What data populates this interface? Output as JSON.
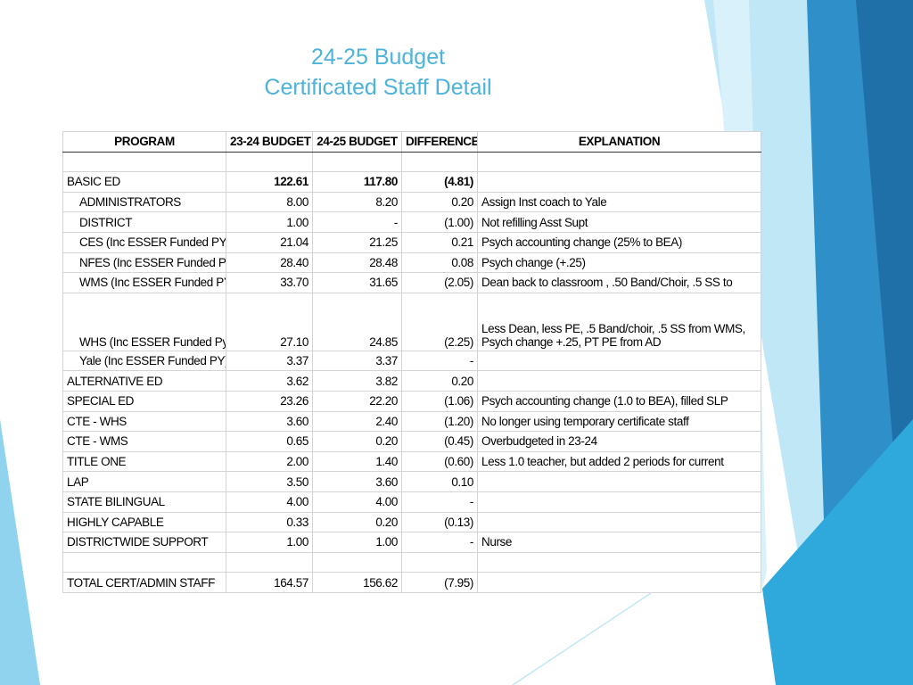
{
  "title": {
    "line1": "24-25 Budget",
    "line2": "Certificated Staff Detail"
  },
  "table": {
    "header": [
      "PROGRAM",
      "23-24 BUDGET",
      "24-25 BUDGET",
      "DIFFERENCE",
      "EXPLANATION"
    ],
    "rows": [
      {
        "program": "BASIC ED",
        "budget_2324": "122.61",
        "budget_2425": "117.80",
        "difference": "(4.81)"
      },
      {
        "program": "ADMINISTRATORS",
        "budget_2324": "8.00",
        "budget_2425": "8.20",
        "difference": "0.20",
        "explanation": "Assign Inst coach to Yale"
      },
      {
        "program": "DISTRICT",
        "budget_2324": "1.00",
        "budget_2425": "-",
        "difference": "(1.00)",
        "explanation": "Not refilling Asst Supt"
      },
      {
        "program": "CES (Inc ESSER Funded PY)",
        "budget_2324": "21.04",
        "budget_2425": "21.25",
        "difference": "0.21",
        "explanation": "Psych accounting change (25% to BEA)"
      },
      {
        "program": "NFES (Inc ESSER Funded PY)",
        "budget_2324": "28.40",
        "budget_2425": "28.48",
        "difference": "0.08",
        "explanation": "Psych change (+.25)"
      },
      {
        "program": "WMS (Inc ESSER Funded PY)",
        "budget_2324": "33.70",
        "budget_2425": "31.65",
        "difference": "(2.05)",
        "explanation": "Dean back to classroom , .50 Band/Choir, .5 SS to"
      },
      {
        "program": "WHS (Inc ESSER Funded Py)",
        "budget_2324": "27.10",
        "budget_2425": "24.85",
        "difference": "(2.25)",
        "explanation": [
          "Less Dean, less PE, .5 Band/choir, .5 SS from WMS,",
          "Psych change +.25, PT PE from AD"
        ]
      },
      {
        "program": "Yale (Inc ESSER Funded PY)",
        "budget_2324": "3.37",
        "budget_2425": "3.37",
        "difference": "-"
      },
      {
        "program": "ALTERNATIVE ED",
        "budget_2324": "3.62",
        "budget_2425": "3.82",
        "difference": "0.20"
      },
      {
        "program": "SPECIAL ED",
        "budget_2324": "23.26",
        "budget_2425": "22.20",
        "difference": "(1.06)",
        "explanation": "Psych accounting change (1.0 to BEA), filled SLP"
      },
      {
        "program": "CTE - WHS",
        "budget_2324": "3.60",
        "budget_2425": "2.40",
        "difference": "(1.20)",
        "explanation": "No longer using temporary certificate staff"
      },
      {
        "program": "CTE - WMS",
        "budget_2324": "0.65",
        "budget_2425": "0.20",
        "difference": "(0.45)",
        "explanation": "Overbudgeted in 23-24"
      },
      {
        "program": "TITLE ONE",
        "budget_2324": "2.00",
        "budget_2425": "1.40",
        "difference": "(0.60)",
        "explanation": "Less 1.0 teacher, but added 2 periods for current"
      },
      {
        "program": "LAP",
        "budget_2324": "3.50",
        "budget_2425": "3.60",
        "difference": "0.10"
      },
      {
        "program": "STATE BILINGUAL",
        "budget_2324": "4.00",
        "budget_2425": "4.00",
        "difference": "-"
      },
      {
        "program": "HIGHLY CAPABLE",
        "budget_2324": "0.33",
        "budget_2425": "0.20",
        "difference": "(0.13)"
      },
      {
        "program": "DISTRICTWIDE SUPPORT",
        "budget_2324": "1.00",
        "budget_2425": "1.00",
        "difference": "-",
        "explanation": "Nurse"
      },
      {
        "program": "TOTAL CERT/ADMIN STAFF",
        "budget_2324": "164.57",
        "budget_2425": "156.62",
        "difference": "(7.95)"
      }
    ]
  }
}
